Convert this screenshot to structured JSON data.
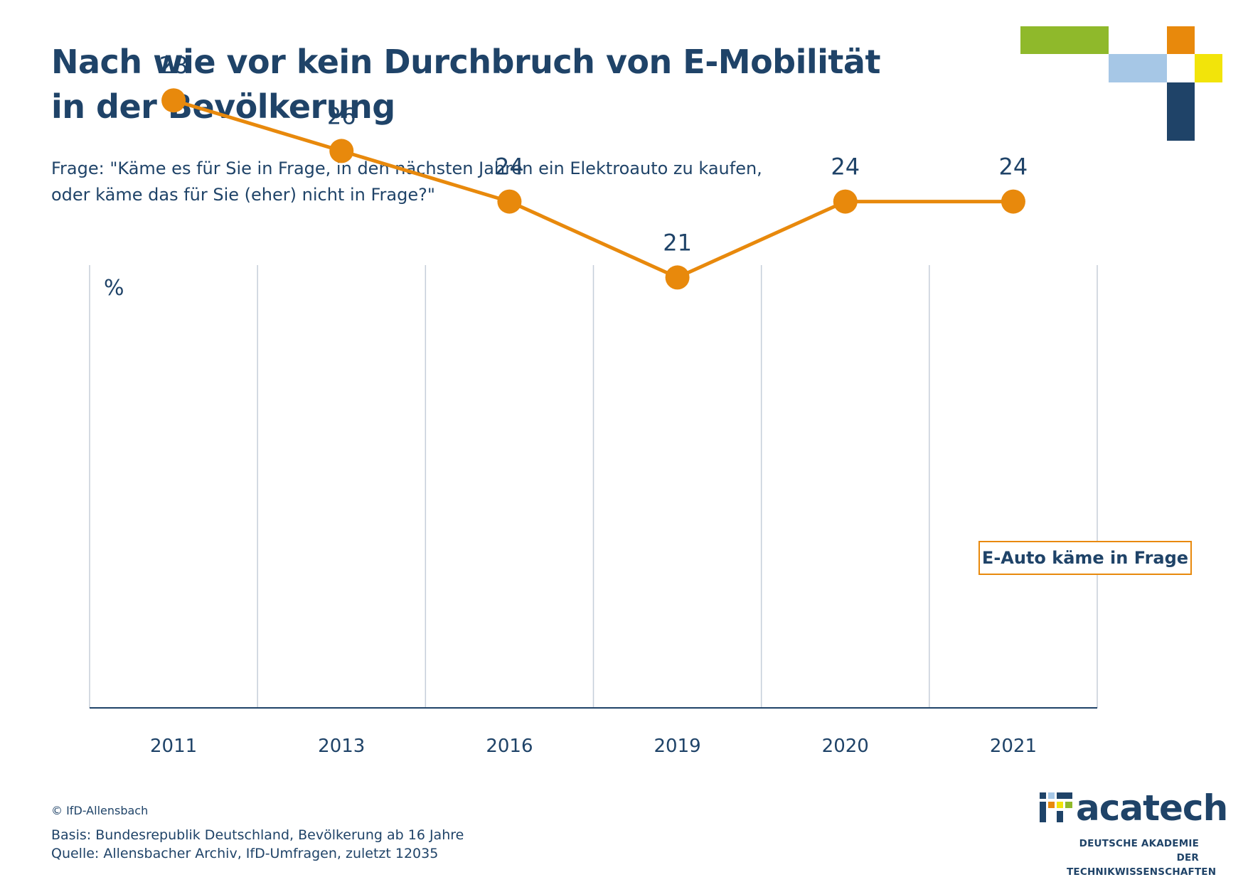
{
  "header": {
    "title_line1": "Nach wie vor kein Durchbruch von E-Mobilität",
    "title_line2": "in der Bevölkerung",
    "question_line1": "Frage: \"Käme es für Sie in Frage, in den nächsten Jahren ein Elektroauto zu kaufen,",
    "question_line2": "oder käme das für Sie (eher) nicht in Frage?\""
  },
  "chart_data": {
    "type": "line",
    "title": "Nach wie vor kein Durchbruch von E-Mobilität in der Bevölkerung",
    "ylabel": "%",
    "xlabel": "",
    "categories": [
      "2011",
      "2013",
      "2016",
      "2019",
      "2020",
      "2021"
    ],
    "series": [
      {
        "name": "E-Auto käme in Frage",
        "values": [
          28,
          26,
          24,
          21,
          24,
          24
        ],
        "color": "#e8890c"
      }
    ],
    "grid": "vertical",
    "legend": "right-of-last-point"
  },
  "colors": {
    "text": "#1f4368",
    "accent": "#e8890c",
    "grid": "#c5ced9",
    "deco_green": "#8fb92b",
    "deco_orange": "#e8890c",
    "deco_lightblue": "#a6c7e6",
    "deco_yellow": "#f2e40a",
    "deco_navy": "#1f4368"
  },
  "footer": {
    "copyright": "© IfD-Allensbach",
    "basis": "Basis: Bundesrepublik Deutschland, Bevölkerung ab 16 Jahre",
    "quelle": "Quelle: Allensbacher Archiv, IfD-Umfragen, zuletzt 12035"
  },
  "logo": {
    "name": "acatech",
    "subtitle_line1": "DEUTSCHE AKADEMIE DER",
    "subtitle_line2": "TECHNIKWISSENSCHAFTEN"
  }
}
